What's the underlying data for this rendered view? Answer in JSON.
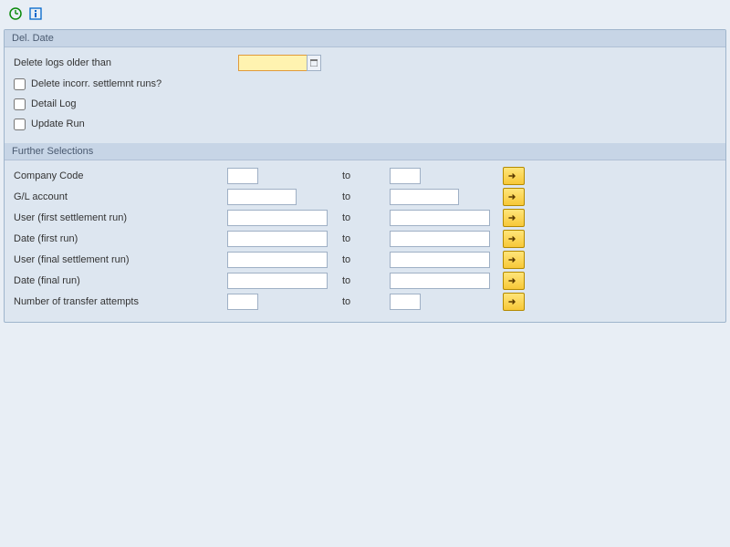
{
  "toolbar": {
    "execute_tooltip": "Execute",
    "info_tooltip": "Information"
  },
  "del_date": {
    "header": "Del. Date",
    "delete_older_label": "Delete logs older than",
    "delete_older_value": "",
    "cb_incorr_label": "Delete incorr. settlemnt runs?",
    "cb_detail_label": "Detail Log",
    "cb_update_label": "Update Run",
    "cb_incorr": false,
    "cb_detail": false,
    "cb_update": false
  },
  "further": {
    "header": "Further Selections",
    "rows": [
      {
        "label": "Company Code",
        "from": "",
        "to": "",
        "width": "short"
      },
      {
        "label": "G/L account",
        "from": "",
        "to": "",
        "width": "med"
      },
      {
        "label": "User (first settlement run)",
        "from": "",
        "to": "",
        "width": "long"
      },
      {
        "label": "Date (first run)",
        "from": "",
        "to": "",
        "width": "long"
      },
      {
        "label": "User (final settlement run)",
        "from": "",
        "to": "",
        "width": "long"
      },
      {
        "label": "Date (final run)",
        "from": "",
        "to": "",
        "width": "long"
      },
      {
        "label": "Number of transfer attempts",
        "from": "",
        "to": "",
        "width": "short"
      }
    ],
    "to_text": "to"
  },
  "colors": {
    "panel_bg": "#dde6f0",
    "header_bg": "#c7d5e6",
    "border": "#9fb5cc",
    "highlight_bg": "#fff3b0",
    "highlight_border": "#e09a3a",
    "multi_btn_bg_top": "#ffe57a",
    "multi_btn_bg_bot": "#f7c838",
    "multi_btn_border": "#b48a00"
  }
}
